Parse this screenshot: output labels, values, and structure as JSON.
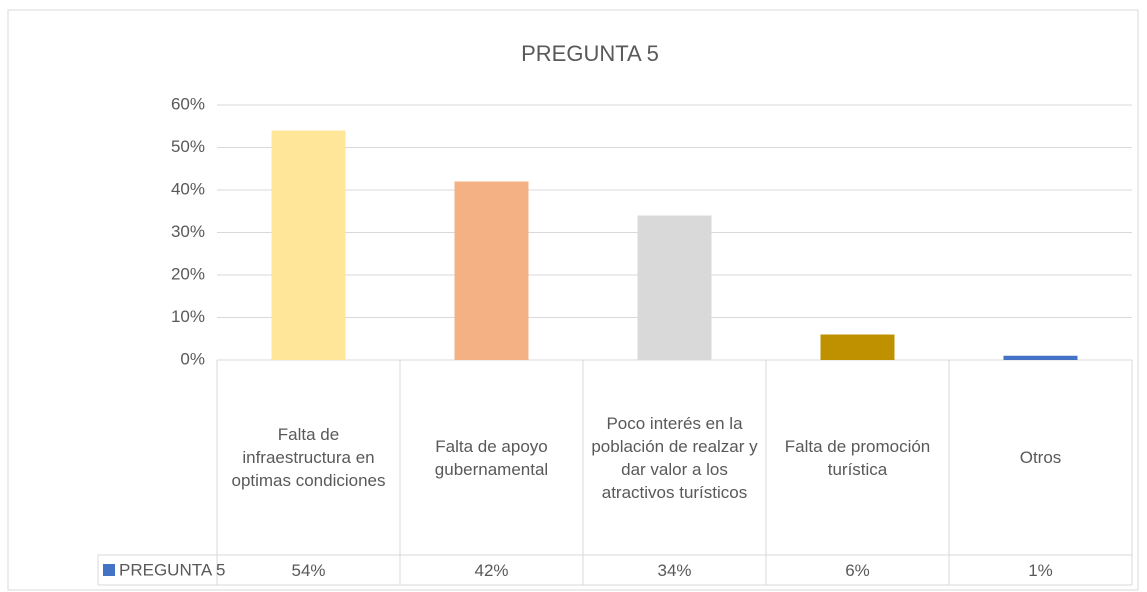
{
  "chart_data": {
    "type": "bar",
    "title": "PREGUNTA 5",
    "categories": [
      "Falta de infraestructura en optimas condiciones",
      "Falta de apoyo gubernamental",
      "Poco interés en la población de realzar y dar valor a los atractivos turísticos",
      "Falta de promoción turística",
      "Otros"
    ],
    "series": [
      {
        "name": "PREGUNTA 5",
        "color": "#4472c4",
        "colors": [
          "#ffe699",
          "#f4b183",
          "#d9d9d9",
          "#bf9000",
          "#4472c4"
        ],
        "values": [
          54,
          42,
          34,
          6,
          1
        ],
        "value_labels": [
          "54%",
          "42%",
          "34%",
          "6%",
          "1%"
        ]
      }
    ],
    "ylim": [
      0,
      60
    ],
    "yticks": [
      {
        "value": 0,
        "label": "0%"
      },
      {
        "value": 10,
        "label": "10%"
      },
      {
        "value": 20,
        "label": "20%"
      },
      {
        "value": 30,
        "label": "30%"
      },
      {
        "value": 40,
        "label": "40%"
      },
      {
        "value": 50,
        "label": "50%"
      },
      {
        "value": 60,
        "label": "60%"
      }
    ],
    "grid": true,
    "data_table": true
  }
}
